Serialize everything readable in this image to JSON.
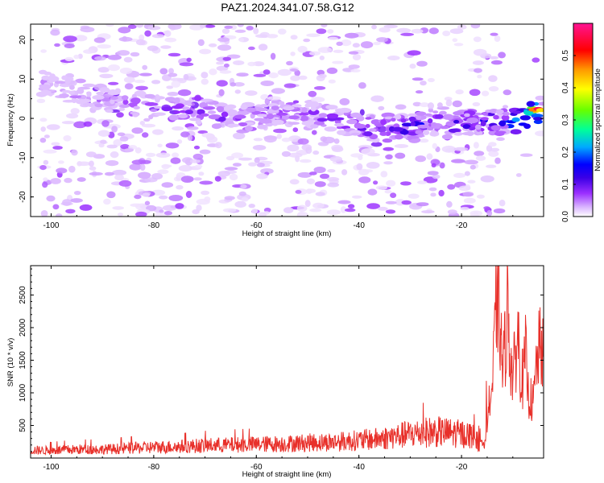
{
  "title": "PAZ1.2024.341.07.58.G12",
  "chart_data": [
    {
      "type": "heatmap",
      "xlabel": "Height of straight line (km)",
      "ylabel": "Frequency (Hz)",
      "xlim": [
        -104,
        -4
      ],
      "ylim": [
        -25,
        24
      ],
      "x_ticks": [
        -100,
        -80,
        -60,
        -40,
        -20
      ],
      "y_ticks": [
        20,
        10,
        0,
        -10,
        -20
      ],
      "colorbar": {
        "label": "Normalized spectral amplitude",
        "range": [
          0.0,
          0.6
        ],
        "ticks": [
          0.0,
          0.1,
          0.2,
          0.3,
          0.4,
          0.5
        ],
        "colors": [
          "#ffffff",
          "#d9b3ff",
          "#9b30ff",
          "#3b00e6",
          "#0000ff",
          "#00aaff",
          "#00ff99",
          "#66ff00",
          "#ffff00",
          "#ff9900",
          "#ff0000",
          "#ff1493"
        ]
      },
      "ridge": {
        "x": [
          -102,
          -96,
          -90,
          -85,
          -80,
          -75,
          -70,
          -65,
          -60,
          -55,
          -50,
          -45,
          -40,
          -35,
          -30,
          -25,
          -22,
          -20,
          -17,
          -14,
          -10,
          -7,
          -5
        ],
        "freq": [
          9,
          7,
          5,
          4,
          3,
          2,
          1,
          0,
          0,
          1,
          1,
          0,
          -2,
          -3,
          -2,
          -1,
          -2,
          -1,
          -1,
          -1,
          -1,
          1,
          2
        ],
        "amplitude": [
          0.08,
          0.1,
          0.1,
          0.1,
          0.12,
          0.14,
          0.14,
          0.14,
          0.12,
          0.12,
          0.14,
          0.15,
          0.18,
          0.2,
          0.22,
          0.2,
          0.18,
          0.2,
          0.22,
          0.25,
          0.3,
          0.45,
          0.55
        ]
      }
    },
    {
      "type": "line",
      "xlabel": "Height of straight line (km)",
      "ylabel": "SNR (10 * v/v)",
      "xlim": [
        -104,
        -4
      ],
      "ylim": [
        0,
        2950
      ],
      "x_ticks": [
        -100,
        -80,
        -60,
        -40,
        -20
      ],
      "y_ticks": [
        500,
        1000,
        1500,
        2000,
        2500
      ],
      "color": "#e8302a",
      "series": [
        {
          "x": [
            -104,
            -100,
            -95,
            -90,
            -85,
            -80,
            -75,
            -70,
            -65,
            -60,
            -55,
            -50,
            -45,
            -42,
            -40,
            -37,
            -35,
            -33,
            -30,
            -27,
            -25,
            -22,
            -20,
            -18,
            -16,
            -15,
            -14,
            -13.5,
            -13,
            -12.5,
            -12,
            -11.5,
            -11,
            -10.5,
            -10,
            -9.5,
            -9,
            -8.5,
            -8,
            -7.5,
            -7,
            -6.5,
            -6,
            -5.5,
            -5,
            -4.5,
            -4
          ],
          "y": [
            140,
            130,
            150,
            150,
            170,
            190,
            200,
            220,
            230,
            240,
            250,
            270,
            280,
            300,
            310,
            330,
            350,
            380,
            420,
            450,
            460,
            440,
            420,
            400,
            200,
            700,
            1200,
            2100,
            2900,
            2300,
            1500,
            1900,
            2650,
            1700,
            1400,
            1700,
            2150,
            1500,
            1300,
            1800,
            1100,
            1000,
            900,
            1500,
            1800,
            1900,
            1700
          ]
        }
      ]
    }
  ]
}
